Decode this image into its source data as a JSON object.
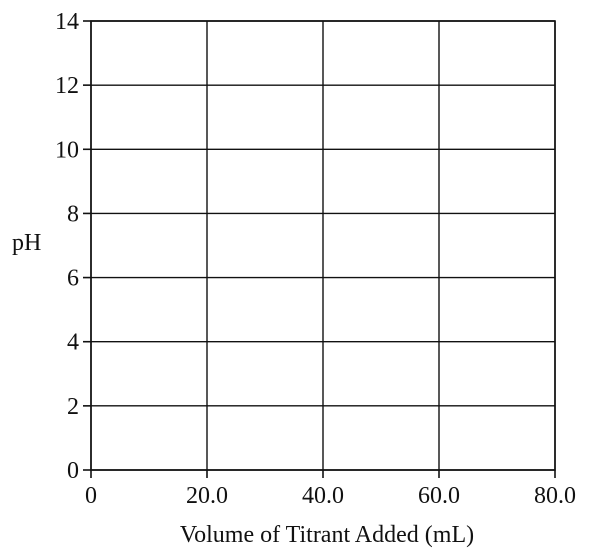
{
  "chart_data": {
    "type": "line",
    "title": "",
    "xlabel": "Volume of Titrant Added (mL)",
    "ylabel": "pH",
    "xlim": [
      0,
      80
    ],
    "ylim": [
      0,
      14
    ],
    "grid": true,
    "series": [],
    "x_ticks": [
      {
        "value": 0,
        "label": "0"
      },
      {
        "value": 20,
        "label": "20.0"
      },
      {
        "value": 40,
        "label": "40.0"
      },
      {
        "value": 60,
        "label": "60.0"
      },
      {
        "value": 80,
        "label": "80.0"
      }
    ],
    "y_ticks": [
      {
        "value": 0,
        "label": "0"
      },
      {
        "value": 2,
        "label": "2"
      },
      {
        "value": 4,
        "label": "4"
      },
      {
        "value": 6,
        "label": "6"
      },
      {
        "value": 8,
        "label": "8"
      },
      {
        "value": 10,
        "label": "10"
      },
      {
        "value": 12,
        "label": "12"
      },
      {
        "value": 14,
        "label": "14"
      }
    ]
  }
}
